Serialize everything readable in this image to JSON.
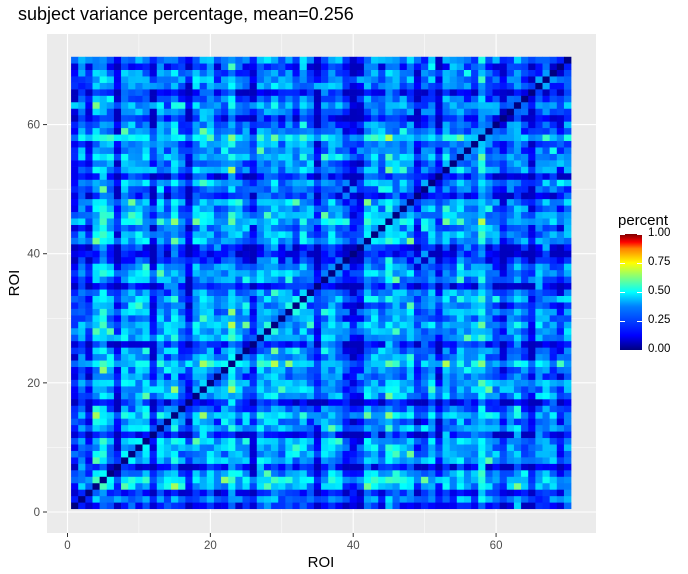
{
  "chart_data": {
    "type": "heatmap",
    "title": "subject variance percentage, mean=0.256",
    "xlabel": "ROI",
    "ylabel": "ROI",
    "n": 70,
    "mean": 0.256,
    "diagonal_value": 0.0,
    "xlim": [
      0,
      70
    ],
    "ylim": [
      0,
      70
    ],
    "xticks": [
      0,
      20,
      40,
      60
    ],
    "yticks": [
      0,
      20,
      40,
      60
    ],
    "xtick_labels": [
      "0",
      "20",
      "40",
      "60"
    ],
    "ytick_labels": [
      "0",
      "20",
      "40",
      "60"
    ],
    "grid": true,
    "colormap": "jet",
    "value_range": [
      0,
      1
    ],
    "legend": {
      "title": "percent",
      "placement": "right",
      "ticks": [
        1.0,
        0.75,
        0.5,
        0.25,
        0.0
      ],
      "labels": [
        "1.00",
        "0.75",
        "0.50",
        "0.25",
        "0.00"
      ]
    },
    "low_variance_rois": [
      1,
      3,
      7,
      12,
      17,
      26,
      35,
      39,
      40,
      41,
      49,
      52,
      61,
      65,
      69
    ],
    "high_variance_rois": [
      5,
      15,
      23,
      29,
      33,
      45,
      48,
      55,
      58
    ]
  }
}
